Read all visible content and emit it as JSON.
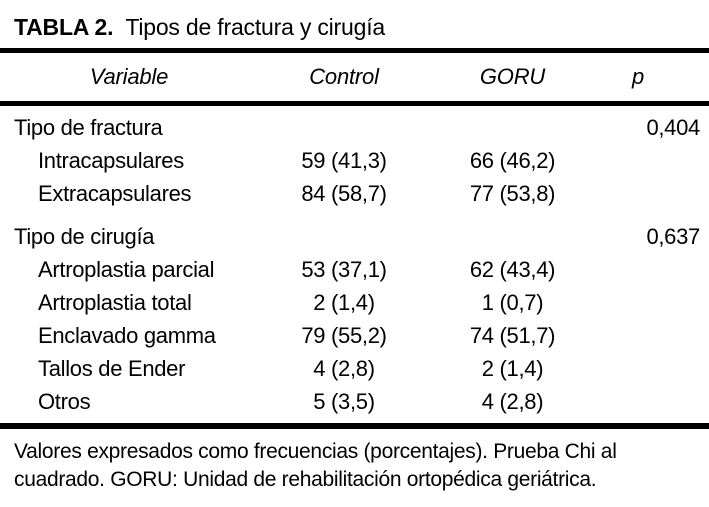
{
  "page": {
    "background_color": "#ffffff",
    "text_color": "#000000",
    "rule_color": "#000000"
  },
  "table": {
    "title": {
      "label_bold": "TABLA 2.",
      "label_rest": "Tipos de fractura y cirugía"
    },
    "header": {
      "variable": "Variable",
      "control": "Control",
      "goru": "GORU",
      "p": "p"
    },
    "sections": [
      {
        "label": "Tipo de fractura",
        "p": "0,404",
        "rows": [
          {
            "label": "Intracapsulares",
            "control": "59 (41,3)",
            "goru": "66 (46,2)"
          },
          {
            "label": "Extracapsulares",
            "control": "84 (58,7)",
            "goru": "77 (53,8)"
          }
        ]
      },
      {
        "label": "Tipo de cirugía",
        "p": "0,637",
        "rows": [
          {
            "label": "Artroplastia parcial",
            "control": "53 (37,1)",
            "goru": "62 (43,4)"
          },
          {
            "label": "Artroplastia total",
            "control": "2 (1,4)",
            "goru": "1 (0,7)"
          },
          {
            "label": "Enclavado gamma",
            "control": "79 (55,2)",
            "goru": "74 (51,7)"
          },
          {
            "label": "Tallos de Ender",
            "control": "4 (2,8)",
            "goru": "2 (1,4)"
          },
          {
            "label": "Otros",
            "control": "5 (3,5)",
            "goru": "4 (2,8)"
          }
        ]
      }
    ],
    "footnote_lines": [
      "Valores expresados como frecuencias (porcentajes). Prueba Chi al",
      "cuadrado. GORU: Unidad de rehabilitación ortopédica geriátrica."
    ]
  }
}
